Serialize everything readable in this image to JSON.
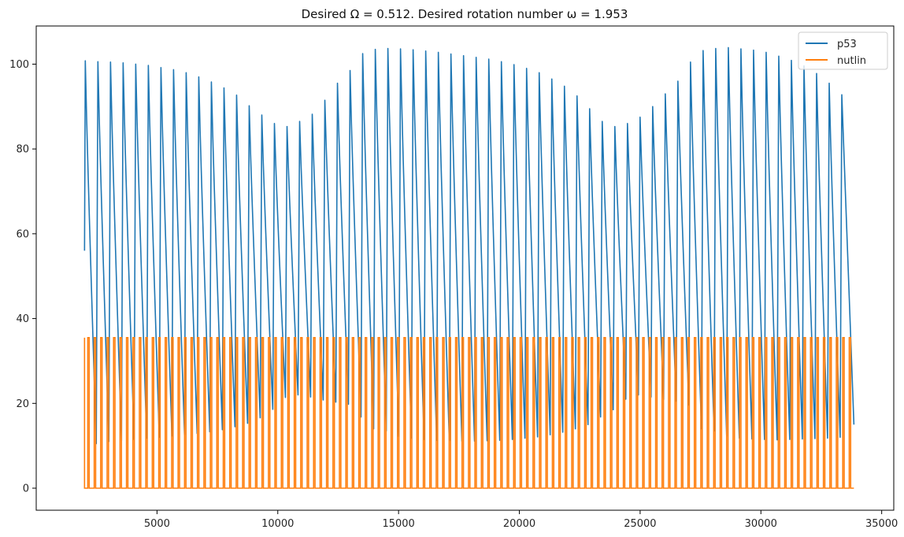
{
  "chart_data": {
    "type": "line",
    "title": "Desired Ω = 0.512. Desired rotation number ω = 1.953",
    "xlabel": "",
    "ylabel": "",
    "xlim": [
      0,
      35500
    ],
    "ylim": [
      -5.2,
      109
    ],
    "xticks": [
      5000,
      10000,
      15000,
      20000,
      25000,
      30000,
      35000
    ],
    "xtick_labels": [
      "5000",
      "10000",
      "15000",
      "20000",
      "25000",
      "30000",
      "35000"
    ],
    "yticks": [
      0,
      20,
      40,
      60,
      80,
      100
    ],
    "ytick_labels": [
      "0",
      "20",
      "40",
      "60",
      "80",
      "100"
    ],
    "grid": false,
    "legend_position": "top-right",
    "series": [
      {
        "name": "p53",
        "color": "#1f77b4",
        "description": "oscillating pulses, ~61 peaks between x=2000 and x=33800",
        "x_range": [
          2000,
          33850
        ],
        "start_value": 56,
        "end_value": 15,
        "pulse_count": 61,
        "peaks": [
          100.8,
          100.6,
          100.5,
          100.3,
          100.0,
          99.7,
          99.2,
          98.7,
          98.0,
          97.0,
          95.8,
          94.4,
          92.7,
          90.2,
          88.0,
          86.0,
          85.3,
          86.5,
          88.2,
          91.5,
          95.5,
          98.5,
          102.5,
          103.5,
          103.7,
          103.6,
          103.4,
          103.1,
          102.8,
          102.4,
          102.0,
          101.6,
          101.2,
          100.6,
          99.9,
          99.0,
          98.0,
          96.5,
          94.8,
          92.5,
          89.5,
          86.5,
          85.3,
          86.0,
          87.5,
          90.0,
          93.0,
          96.0,
          100.5,
          103.2,
          103.7,
          103.9,
          103.6,
          103.3,
          102.8,
          101.9,
          100.9,
          99.6,
          97.8,
          95.5,
          92.8
        ],
        "troughs": [
          10.5,
          11.0,
          11.2,
          11.5,
          11.8,
          12.0,
          12.3,
          12.6,
          12.9,
          13.3,
          13.8,
          14.5,
          15.3,
          16.6,
          18.6,
          21.4,
          22.0,
          21.5,
          20.8,
          20.3,
          19.8,
          16.8,
          14.0,
          13.5,
          12.2,
          11.8,
          11.5,
          11.3,
          11.2,
          11.1,
          11.1,
          11.2,
          11.3,
          11.5,
          11.8,
          12.1,
          12.6,
          13.2,
          14.0,
          15.0,
          16.8,
          18.5,
          21.0,
          22.0,
          21.5,
          20.9,
          20.5,
          19.6,
          14.0,
          13.5,
          12.2,
          11.8,
          11.6,
          11.5,
          11.4,
          11.5,
          11.6,
          11.7,
          11.8,
          12.0
        ]
      },
      {
        "name": "nutlin",
        "color": "#ff7f0e",
        "description": "square pulses alternating between 0 and ~35.5, roughly two pulses per p53 cycle",
        "x_range": [
          2000,
          33850
        ],
        "low": 0,
        "high": 35.5,
        "pulse_count": 119
      }
    ]
  }
}
